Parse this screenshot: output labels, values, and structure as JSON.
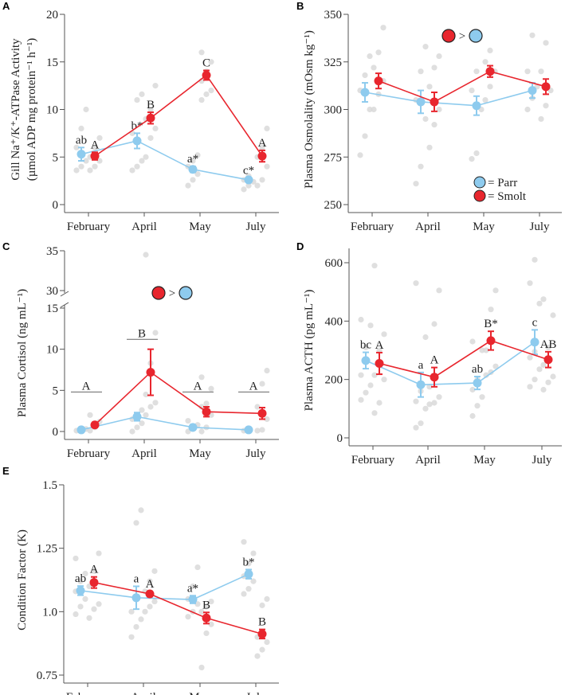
{
  "colors": {
    "parr": "#8ecbee",
    "smolt": "#e8262e",
    "dots": "#d9d9d9",
    "axis": "#555555"
  },
  "legend": {
    "parr": "= Parr",
    "smolt": "= Smolt"
  },
  "comparison_text": ">",
  "chart_data": [
    {
      "panel": "A",
      "type": "line",
      "ylabel": "Gill Na⁺/K⁺-ATPase Activity",
      "ylabel2": "(µmol ADP mg protein⁻¹ h⁻¹)",
      "categories": [
        "February",
        "April",
        "May",
        "July"
      ],
      "ylim": [
        0,
        20
      ],
      "yticks": [
        0,
        5,
        10,
        15,
        20
      ],
      "series": [
        {
          "name": "Parr",
          "values": [
            5.3,
            6.7,
            3.7,
            2.6
          ],
          "se": [
            0.7,
            0.8,
            0.3,
            0.2
          ],
          "labels": [
            "ab",
            "b*",
            "a*",
            "c*"
          ],
          "points": [
            [
              3.6,
              4,
              4.6,
              6,
              8,
              10
            ],
            [
              3.6,
              4,
              4.6,
              7.5,
              11,
              11.6
            ],
            [
              2,
              2.6,
              3.2,
              4,
              4.6,
              5.2
            ],
            [
              1.6,
              2,
              2.4,
              2.6,
              3
            ]
          ]
        },
        {
          "name": "Smolt",
          "values": [
            5.1,
            9.1,
            13.6,
            5.1
          ],
          "se": [
            0.4,
            0.6,
            0.5,
            0.6
          ],
          "labels": [
            "A",
            "B",
            "C",
            "A"
          ],
          "points": [
            [
              3.6,
              4,
              4.6,
              5,
              6,
              7
            ],
            [
              5,
              7,
              8,
              9,
              10,
              12.5
            ],
            [
              11,
              11.6,
              12,
              13,
              14,
              15,
              16
            ],
            [
              2,
              2.6,
              4,
              5,
              6,
              8
            ]
          ]
        }
      ]
    },
    {
      "panel": "B",
      "type": "line",
      "ylabel": "Plasma Osmolality (mOsm kg⁻¹)",
      "categories": [
        "February",
        "April",
        "May",
        "July"
      ],
      "ylim": [
        250,
        350
      ],
      "yticks": [
        250,
        275,
        300,
        325,
        350
      ],
      "annotation": "Smolt > Parr",
      "series": [
        {
          "name": "Parr",
          "values": [
            309,
            304,
            302,
            310
          ],
          "se": [
            5,
            6,
            5,
            4
          ],
          "labels": [
            "",
            "",
            "",
            ""
          ],
          "points": [
            [
              276,
              286,
              300,
              310,
              318,
              328
            ],
            [
              261,
              270,
              295,
              305,
              320,
              333
            ],
            [
              274,
              277,
              300,
              310,
              320
            ],
            [
              300,
              306,
              312,
              320,
              339
            ]
          ]
        },
        {
          "name": "Smolt",
          "values": [
            315,
            304,
            320,
            312
          ],
          "se": [
            4,
            5,
            3,
            4
          ],
          "labels": [
            "",
            "",
            "",
            ""
          ],
          "points": [
            [
              300,
              308,
              315,
              322,
              330,
              343
            ],
            [
              280,
              292,
              300,
              312,
              322,
              328
            ],
            [
              305,
              312,
              320,
              325,
              331
            ],
            [
              295,
              302,
              310,
              320,
              335
            ]
          ]
        }
      ]
    },
    {
      "panel": "C",
      "type": "line",
      "ylabel": "Plasma Cortisol (ng mL⁻¹)",
      "categories": [
        "February",
        "April",
        "May",
        "July"
      ],
      "ylim": [
        0,
        35
      ],
      "axis_break": [
        15,
        30
      ],
      "yticks": [
        0,
        5,
        10,
        15,
        30,
        35
      ],
      "annotation": "Smolt > Parr",
      "group_labels": [
        {
          "text": "A",
          "value": 4.8
        },
        {
          "text": "B",
          "value": 11.2
        },
        {
          "text": "A",
          "value": 4.8
        },
        {
          "text": "A",
          "value": 4.8
        }
      ],
      "series": [
        {
          "name": "Parr",
          "values": [
            0.2,
            1.8,
            0.5,
            0.2
          ],
          "se": [
            0.1,
            0.5,
            0.3,
            0.1
          ],
          "labels": [
            "",
            "",
            "",
            ""
          ],
          "points": [
            [
              0.1,
              0.2,
              0.3
            ],
            [
              0,
              0.5,
              1,
              1.5,
              2,
              2.6
            ],
            [
              0,
              0.3,
              0.8,
              1.3
            ],
            [
              0.1,
              0.2
            ]
          ]
        },
        {
          "name": "Smolt",
          "values": [
            0.8,
            7.2,
            2.4,
            2.2
          ],
          "se": [
            0.3,
            2.8,
            0.6,
            0.7
          ],
          "labels": [
            "",
            "",
            "",
            ""
          ],
          "points": [
            [
              0.1,
              0.5,
              1.2,
              2
            ],
            [
              2,
              3,
              3.5,
              4.5,
              8.3,
              12,
              34.5
            ],
            [
              0,
              0.5,
              2,
              3,
              3.4,
              5.2,
              6.6
            ],
            [
              0.1,
              0.2,
              1.5,
              3,
              5.8,
              7.4
            ]
          ]
        }
      ]
    },
    {
      "panel": "D",
      "type": "line",
      "ylabel": "Plasma ACTH (pg mL⁻¹)",
      "categories": [
        "February",
        "April",
        "May",
        "July"
      ],
      "ylim": [
        0,
        600
      ],
      "yticks": [
        0,
        200,
        400,
        600
      ],
      "series": [
        {
          "name": "Parr",
          "values": [
            265,
            182,
            188,
            328
          ],
          "se": [
            28,
            42,
            22,
            42
          ],
          "labels": [
            "bc",
            "a",
            "ab",
            "c"
          ],
          "points": [
            [
              130,
              155,
              180,
              215,
              310,
              385,
              405
            ],
            [
              35,
              50,
              100,
              125,
              160,
              345,
              530
            ],
            [
              75,
              110,
              140,
              165,
              200,
              300,
              330
            ],
            [
              175,
              200,
              235,
              275,
              295,
              460,
              530,
              610
            ]
          ]
        },
        {
          "name": "Smolt",
          "values": [
            255,
            208,
            333,
            268
          ],
          "se": [
            37,
            33,
            32,
            27
          ],
          "labels": [
            "A",
            "A",
            "B*",
            "AB"
          ],
          "points": [
            [
              85,
              120,
              200,
              215,
              300,
              355,
              590
            ],
            [
              115,
              120,
              140,
              175,
              390,
              505
            ],
            [
              215,
              225,
              245,
              300,
              440,
              505
            ],
            [
              165,
              190,
              210,
              250,
              310,
              420,
              475
            ]
          ]
        }
      ]
    },
    {
      "panel": "E",
      "type": "line",
      "ylabel": "Condition Factor (K)",
      "categories": [
        "February",
        "April",
        "May",
        "July"
      ],
      "ylim": [
        0.75,
        1.5
      ],
      "yticks": [
        0.75,
        1.0,
        1.25,
        1.5
      ],
      "yticklabels": [
        "0.75",
        "1.0",
        "1.25",
        "1.5"
      ],
      "series": [
        {
          "name": "Parr",
          "values": [
            1.083,
            1.055,
            1.048,
            1.148
          ],
          "se": [
            0.018,
            0.045,
            0.015,
            0.018
          ],
          "labels": [
            "ab",
            "a",
            "a*",
            "b*"
          ],
          "points": [
            [
              0.99,
              1.02,
              1.05,
              1.08,
              1.12,
              1.15,
              1.21
            ],
            [
              0.9,
              0.94,
              0.97,
              1.0,
              1.35,
              1.4
            ],
            [
              0.98,
              1.0,
              1.03,
              1.05,
              1.1,
              1.175
            ],
            [
              1.07,
              1.09,
              1.12,
              1.14,
              1.19,
              1.23,
              1.275
            ]
          ]
        },
        {
          "name": "Smolt",
          "values": [
            1.115,
            1.07,
            0.975,
            0.912
          ],
          "se": [
            0.022,
            0.01,
            0.022,
            0.018
          ],
          "labels": [
            "A",
            "A",
            "B",
            "B"
          ],
          "points": [
            [
              0.975,
              1.01,
              1.03,
              1.1,
              1.16,
              1.23
            ],
            [
              1.0,
              1.02,
              1.04,
              1.08,
              1.12,
              1.16
            ],
            [
              0.78,
              0.915,
              0.95,
              1.0,
              1.02,
              1.04
            ],
            [
              0.825,
              0.85,
              0.88,
              0.9,
              1.025,
              1.05
            ]
          ]
        }
      ]
    }
  ]
}
